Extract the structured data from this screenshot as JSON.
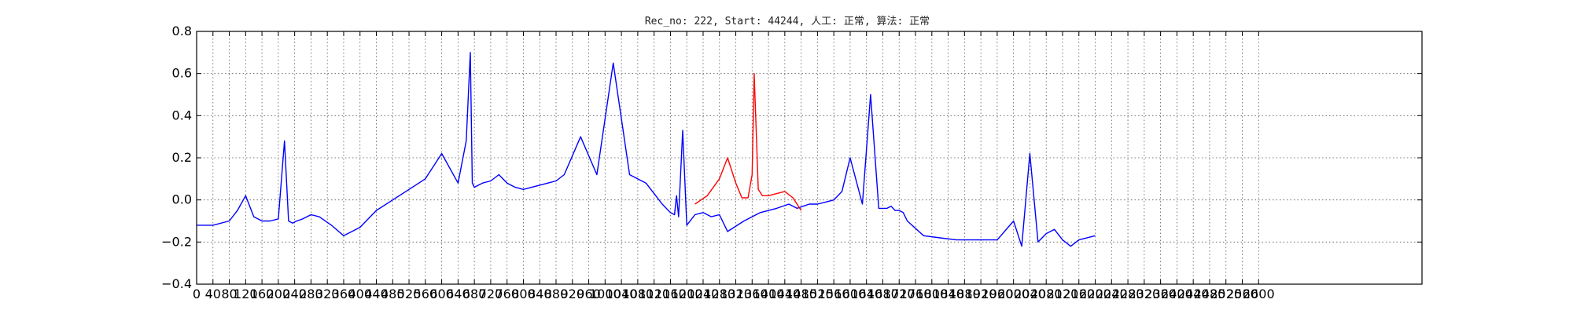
{
  "chart_data": {
    "type": "line",
    "title": "Rec_no: 222, Start: 44244, 人工: 正常, 算法: 正常",
    "xlabel": "",
    "ylabel": "",
    "xlim": [
      0,
      3000
    ],
    "ylim": [
      -0.4,
      0.8
    ],
    "grid": true,
    "yticks": [
      -0.4,
      -0.2,
      0.0,
      0.2,
      0.4,
      0.6,
      0.8
    ],
    "ytick_labels": [
      "−0.4",
      "−0.2",
      "0.0",
      "0.2",
      "0.4",
      "0.6",
      "0.8"
    ],
    "xticks": [
      0,
      40,
      80,
      120,
      160,
      200,
      240,
      280,
      320,
      360,
      400,
      440,
      480,
      520,
      560,
      600,
      640,
      680,
      720,
      760,
      800,
      840,
      880,
      920,
      960,
      1000,
      1040,
      1080,
      1120,
      1160,
      1200,
      1240,
      1280,
      1320,
      1360,
      1400,
      1440,
      1480,
      1520,
      1560,
      1600,
      1640,
      1680,
      1720,
      1760,
      1800,
      1840,
      1880,
      1920,
      1960,
      2000,
      2040,
      2080,
      2120,
      2160,
      2200,
      2240,
      2280,
      2320,
      2360,
      2400,
      2440,
      2480,
      2520,
      2560,
      2600
    ],
    "series": [
      {
        "color": "#0000ff",
        "x": [
          0,
          40,
          80,
          100,
          120,
          140,
          160,
          180,
          200,
          215,
          225,
          235,
          245,
          260,
          280,
          300,
          330,
          360,
          400,
          440,
          480,
          520,
          560,
          600,
          640,
          660,
          670,
          675,
          680,
          690,
          700,
          720,
          740,
          760,
          780,
          800,
          820,
          840,
          860,
          880,
          900,
          940,
          980,
          1020,
          1060,
          1100,
          1140,
          1160,
          1170,
          1175,
          1180,
          1190,
          1200,
          1220,
          1240,
          1260,
          1280,
          1300,
          1340,
          1380,
          1420,
          1450,
          1470,
          1485,
          1500,
          1520,
          1540,
          1560,
          1580,
          1600,
          1630,
          1650,
          1670,
          1690,
          1700,
          1710,
          1720,
          1730,
          1740,
          1780,
          1820,
          1860,
          1900,
          1960,
          2000,
          2020,
          2040,
          2060,
          2080,
          2100,
          2120,
          2140,
          2160,
          2200
        ],
        "y": [
          -0.12,
          -0.12,
          -0.1,
          -0.05,
          0.02,
          -0.08,
          -0.1,
          -0.1,
          -0.09,
          0.28,
          -0.1,
          -0.11,
          -0.1,
          -0.09,
          -0.07,
          -0.08,
          -0.12,
          -0.17,
          -0.13,
          -0.05,
          0.0,
          0.05,
          0.1,
          0.22,
          0.08,
          0.28,
          0.7,
          0.08,
          0.06,
          0.07,
          0.08,
          0.09,
          0.12,
          0.08,
          0.06,
          0.05,
          0.06,
          0.07,
          0.08,
          0.09,
          0.12,
          0.3,
          0.12,
          0.65,
          0.12,
          0.08,
          -0.02,
          -0.06,
          -0.07,
          0.02,
          -0.08,
          0.33,
          -0.12,
          -0.07,
          -0.06,
          -0.08,
          -0.07,
          -0.15,
          -0.1,
          -0.06,
          -0.04,
          -0.02,
          -0.04,
          -0.03,
          -0.02,
          -0.02,
          -0.01,
          0.0,
          0.04,
          0.2,
          -0.02,
          0.5,
          -0.04,
          -0.04,
          -0.03,
          -0.05,
          -0.05,
          -0.06,
          -0.1,
          -0.17,
          -0.18,
          -0.19,
          -0.19,
          -0.19,
          -0.1,
          -0.22,
          0.22,
          -0.2,
          -0.16,
          -0.14,
          -0.19,
          -0.22,
          -0.19,
          -0.17
        ]
      },
      {
        "color": "#ff0000",
        "x": [
          1220,
          1250,
          1280,
          1300,
          1320,
          1335,
          1350,
          1360,
          1365,
          1375,
          1385,
          1400,
          1420,
          1440,
          1460,
          1480
        ],
        "y": [
          -0.02,
          0.02,
          0.1,
          0.2,
          0.08,
          0.01,
          0.01,
          0.12,
          0.6,
          0.05,
          0.02,
          0.02,
          0.03,
          0.04,
          0.01,
          -0.05
        ]
      }
    ]
  }
}
